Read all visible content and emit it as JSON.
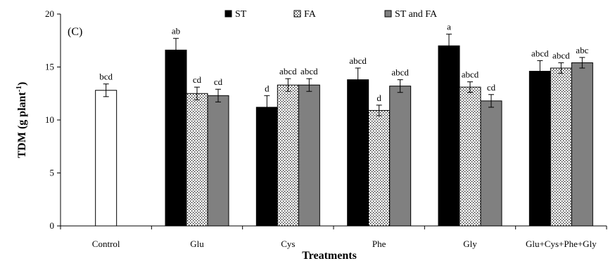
{
  "chart_data": {
    "type": "bar",
    "panel_label": "(C)",
    "xlabel": "Treatments",
    "ylabel": "TDM (g plant",
    "ylabel_sup": "-1",
    "ylabel_tail": ")",
    "ylim": [
      0,
      20
    ],
    "yticks": [
      0,
      5,
      10,
      15,
      20
    ],
    "categories": [
      "Control",
      "Glu",
      "Cys",
      "Phe",
      "Gly",
      "Glu+Cys+Phe+Gly"
    ],
    "series": [
      {
        "name": "ST",
        "color": "#000000",
        "pattern": "solid",
        "values": [
          null,
          16.6,
          11.2,
          13.8,
          17.0,
          14.6
        ],
        "errors": [
          null,
          1.1,
          1.1,
          1.1,
          1.1,
          1.0
        ],
        "labels": [
          null,
          "ab",
          "d",
          "abcd",
          "a",
          "abcd"
        ]
      },
      {
        "name": "FA",
        "color": "#ffffff",
        "pattern": "dotted",
        "values": [
          null,
          12.5,
          13.3,
          10.9,
          13.1,
          14.9
        ],
        "errors": [
          null,
          0.6,
          0.6,
          0.5,
          0.5,
          0.5
        ],
        "labels": [
          null,
          "cd",
          "abcd",
          "d",
          "abcd",
          "abcd"
        ]
      },
      {
        "name": "ST and FA",
        "color": "#808080",
        "pattern": "solid",
        "values": [
          null,
          12.3,
          13.3,
          13.2,
          11.8,
          15.4
        ],
        "errors": [
          null,
          0.6,
          0.6,
          0.6,
          0.6,
          0.5
        ],
        "labels": [
          null,
          "cd",
          "abcd",
          "abcd",
          "cd",
          "abc"
        ]
      }
    ],
    "control": {
      "value": 12.8,
      "error": 0.6,
      "label": "bcd",
      "color": "#ffffff"
    },
    "legend_position": "top"
  }
}
